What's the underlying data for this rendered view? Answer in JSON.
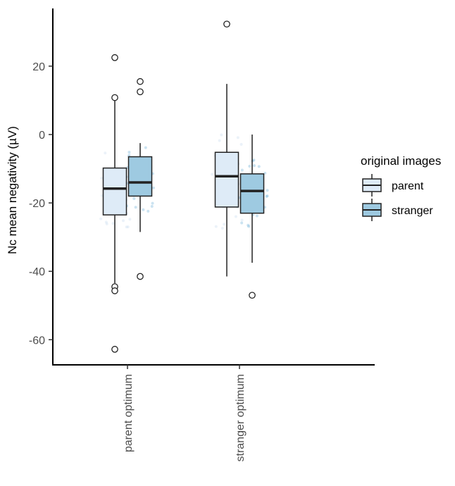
{
  "chart_data": {
    "type": "boxplot",
    "title": "",
    "xlabel": "",
    "ylabel": "Nc mean negativity (µV)",
    "ylim": [
      -67,
      36
    ],
    "yticks": [
      20,
      0,
      -20,
      -40,
      -60
    ],
    "ytick_labels": [
      "20",
      "0",
      "-20",
      "-40",
      "-60"
    ],
    "categories": [
      "parent optimum",
      "stranger optimum"
    ],
    "legend": {
      "title": "original images",
      "placement": "right"
    },
    "series": [
      {
        "name": "parent",
        "color": "#deebf7",
        "boxes": [
          {
            "category": "parent optimum",
            "q1": -23.5,
            "median": -15.8,
            "q3": -9.8,
            "whisker_low": -43.5,
            "whisker_high": 10.5,
            "outliers": [
              22.5,
              10.8,
              -44.5,
              -45.7,
              -62.8
            ]
          },
          {
            "category": "stranger optimum",
            "q1": -21.2,
            "median": -12.2,
            "q3": -5.2,
            "whisker_low": -41.5,
            "whisker_high": 14.8,
            "outliers": [
              32.3
            ]
          }
        ]
      },
      {
        "name": "stranger",
        "color": "#9ecae1",
        "boxes": [
          {
            "category": "parent optimum",
            "q1": -18.0,
            "median": -14.0,
            "q3": -6.5,
            "whisker_low": -28.5,
            "whisker_high": -2.5,
            "outliers": [
              15.5,
              12.5,
              -41.5
            ]
          },
          {
            "category": "stranger optimum",
            "q1": -23.0,
            "median": -16.5,
            "q3": -11.5,
            "whisker_low": -37.5,
            "whisker_high": 0.0,
            "outliers": [
              -47.0
            ]
          }
        ]
      }
    ]
  }
}
